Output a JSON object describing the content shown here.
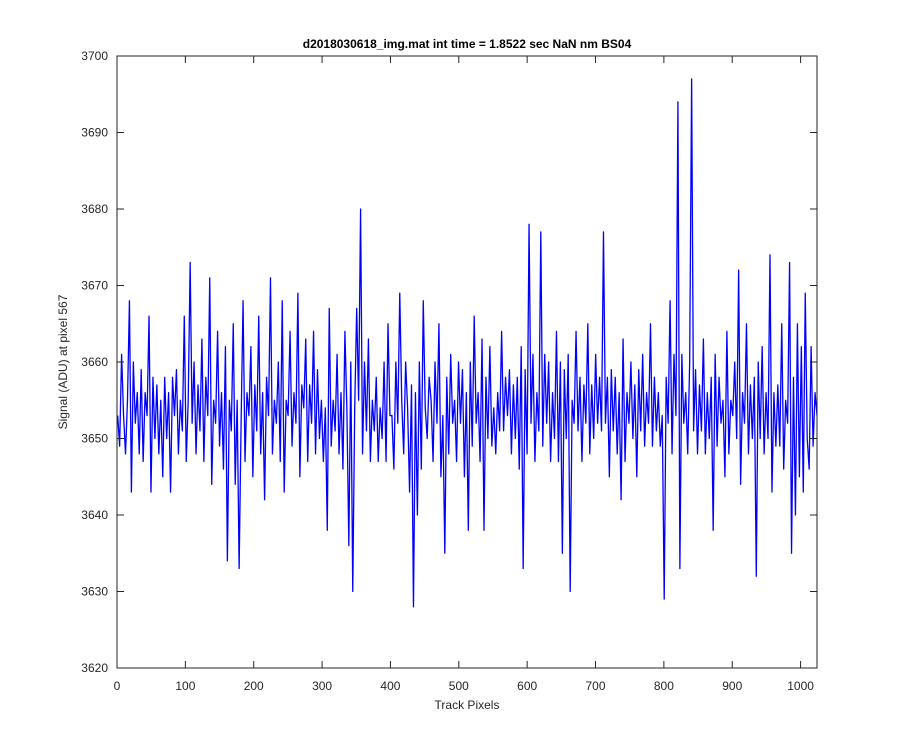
{
  "chart_data": {
    "type": "line",
    "title": "d2018030618_img.mat int time = 1.8522 sec  NaN nm BS04",
    "xlabel": "Track Pixels",
    "ylabel": "Signal (ADU) at pixel 567",
    "xlim": [
      0,
      1024
    ],
    "ylim": [
      3620,
      3700
    ],
    "xticks": [
      0,
      100,
      200,
      300,
      400,
      500,
      600,
      700,
      800,
      900,
      1000
    ],
    "yticks": [
      3620,
      3630,
      3640,
      3650,
      3660,
      3670,
      3680,
      3690,
      3700
    ],
    "grid": false,
    "legend": "none",
    "colors": {
      "line": "#0000ff",
      "axes": "#262626",
      "background": "#ffffff"
    },
    "series_summary": {
      "num_points": 1024,
      "baseline_mean": 3654,
      "typical_min": 3643,
      "typical_max": 3667
    },
    "series": [
      {
        "values": [
          3653,
          3649,
          3661,
          3653,
          3648,
          3655,
          3668,
          3643,
          3660,
          3652,
          3656,
          3648,
          3659,
          3647,
          3656,
          3653,
          3666,
          3643,
          3658,
          3650,
          3657,
          3648,
          3655,
          3645,
          3658,
          3650,
          3656,
          3643,
          3658,
          3653,
          3659,
          3648,
          3655,
          3651,
          3666,
          3647,
          3655,
          3673,
          3652,
          3660,
          3648,
          3657,
          3651,
          3663,
          3647,
          3658,
          3653,
          3671,
          3644,
          3655,
          3652,
          3664,
          3649,
          3656,
          3646,
          3662,
          3634,
          3655,
          3651,
          3665,
          3644,
          3655,
          3633,
          3652,
          3668,
          3647,
          3656,
          3653,
          3662,
          3645,
          3657,
          3651,
          3666,
          3648,
          3656,
          3642,
          3658,
          3653,
          3671,
          3648,
          3655,
          3652,
          3660,
          3647,
          3668,
          3643,
          3655,
          3653,
          3664,
          3649,
          3656,
          3652,
          3669,
          3645,
          3657,
          3654,
          3663,
          3647,
          3657,
          3652,
          3664,
          3648,
          3659,
          3650,
          3655,
          3647,
          3654,
          3638,
          3667,
          3649,
          3655,
          3651,
          3661,
          3648,
          3656,
          3646,
          3664,
          3654,
          3636,
          3660,
          3630,
          3654,
          3667,
          3655,
          3680,
          3648,
          3660,
          3651,
          3663,
          3647,
          3655,
          3651,
          3658,
          3647,
          3654,
          3650,
          3660,
          3647,
          3665,
          3653,
          3653,
          3646,
          3660,
          3652,
          3669,
          3655,
          3648,
          3660,
          3654,
          3643,
          3657,
          3628,
          3656,
          3640,
          3660,
          3646,
          3668,
          3654,
          3650,
          3658,
          3655,
          3647,
          3660,
          3652,
          3665,
          3645,
          3653,
          3635,
          3658,
          3648,
          3661,
          3652,
          3655,
          3647,
          3660,
          3652,
          3659,
          3645,
          3656,
          3638,
          3660,
          3649,
          3666,
          3652,
          3656,
          3647,
          3663,
          3638,
          3658,
          3650,
          3662,
          3649,
          3654,
          3648,
          3656,
          3651,
          3664,
          3651,
          3658,
          3653,
          3659,
          3648,
          3657,
          3650,
          3658,
          3646,
          3662,
          3633,
          3659,
          3648,
          3678,
          3652,
          3661,
          3647,
          3656,
          3651,
          3677,
          3649,
          3661,
          3652,
          3660,
          3647,
          3656,
          3650,
          3664,
          3647,
          3660,
          3635,
          3659,
          3650,
          3661,
          3630,
          3655,
          3652,
          3664,
          3651,
          3658,
          3647,
          3657,
          3652,
          3665,
          3648,
          3657,
          3650,
          3661,
          3652,
          3658,
          3651,
          3677,
          3652,
          3658,
          3645,
          3659,
          3651,
          3658,
          3648,
          3656,
          3642,
          3663,
          3647,
          3656,
          3652,
          3660,
          3650,
          3657,
          3645,
          3659,
          3651,
          3661,
          3649,
          3656,
          3652,
          3665,
          3649,
          3658,
          3651,
          3656,
          3649,
          3653,
          3629,
          3658,
          3652,
          3668,
          3648,
          3661,
          3653,
          3694,
          3633,
          3661,
          3652,
          3656,
          3648,
          3660,
          3697,
          3651,
          3659,
          3648,
          3657,
          3651,
          3663,
          3648,
          3656,
          3650,
          3658,
          3638,
          3661,
          3649,
          3658,
          3652,
          3655,
          3645,
          3664,
          3648,
          3655,
          3653,
          3660,
          3650,
          3672,
          3644,
          3656,
          3652,
          3665,
          3648,
          3657,
          3650,
          3658,
          3632,
          3660,
          3650,
          3662,
          3648,
          3656,
          3650,
          3674,
          3643,
          3656,
          3649,
          3657,
          3649,
          3665,
          3646,
          3655,
          3652,
          3673,
          3635,
          3658,
          3640,
          3665,
          3645,
          3662,
          3643,
          3669,
          3650,
          3646,
          3662,
          3649,
          3656,
          3653
        ]
      }
    ]
  }
}
